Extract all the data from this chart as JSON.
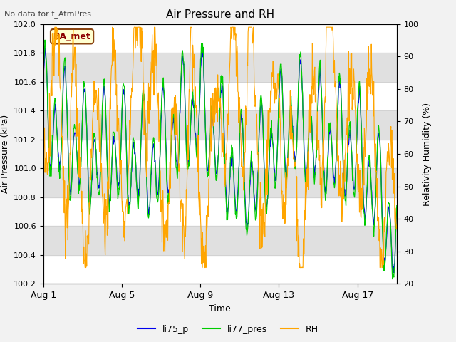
{
  "title": "Air Pressure and RH",
  "top_left_text": "No data for f_AtmPres",
  "xlabel": "Time",
  "ylabel_left": "Air Pressure (kPa)",
  "ylabel_right": "Relativity Humidity (%)",
  "site_label": "BA_met",
  "ylim_left": [
    100.2,
    102.0
  ],
  "ylim_right": [
    20,
    100
  ],
  "yticks_left": [
    100.2,
    100.4,
    100.6,
    100.8,
    101.0,
    101.2,
    101.4,
    101.6,
    101.8,
    102.0
  ],
  "yticks_right": [
    20,
    30,
    40,
    50,
    60,
    70,
    80,
    90,
    100
  ],
  "xtick_positions": [
    0,
    4,
    8,
    12,
    16
  ],
  "xtick_labels": [
    "Aug 1",
    "Aug 5",
    "Aug 9",
    "Aug 13",
    "Aug 17"
  ],
  "xlim": [
    0,
    18
  ],
  "colors": {
    "li75_p": "#0000ee",
    "li77_pres": "#00cc00",
    "RH": "#ffa500",
    "fig_bg": "#f2f2f2",
    "plot_bg": "#ffffff",
    "gray_band": "#e0e0e0"
  },
  "legend_entries": [
    "li75_p",
    "li77_pres",
    "RH"
  ],
  "subplots_adjust": [
    0.095,
    0.87,
    0.93,
    0.17
  ]
}
